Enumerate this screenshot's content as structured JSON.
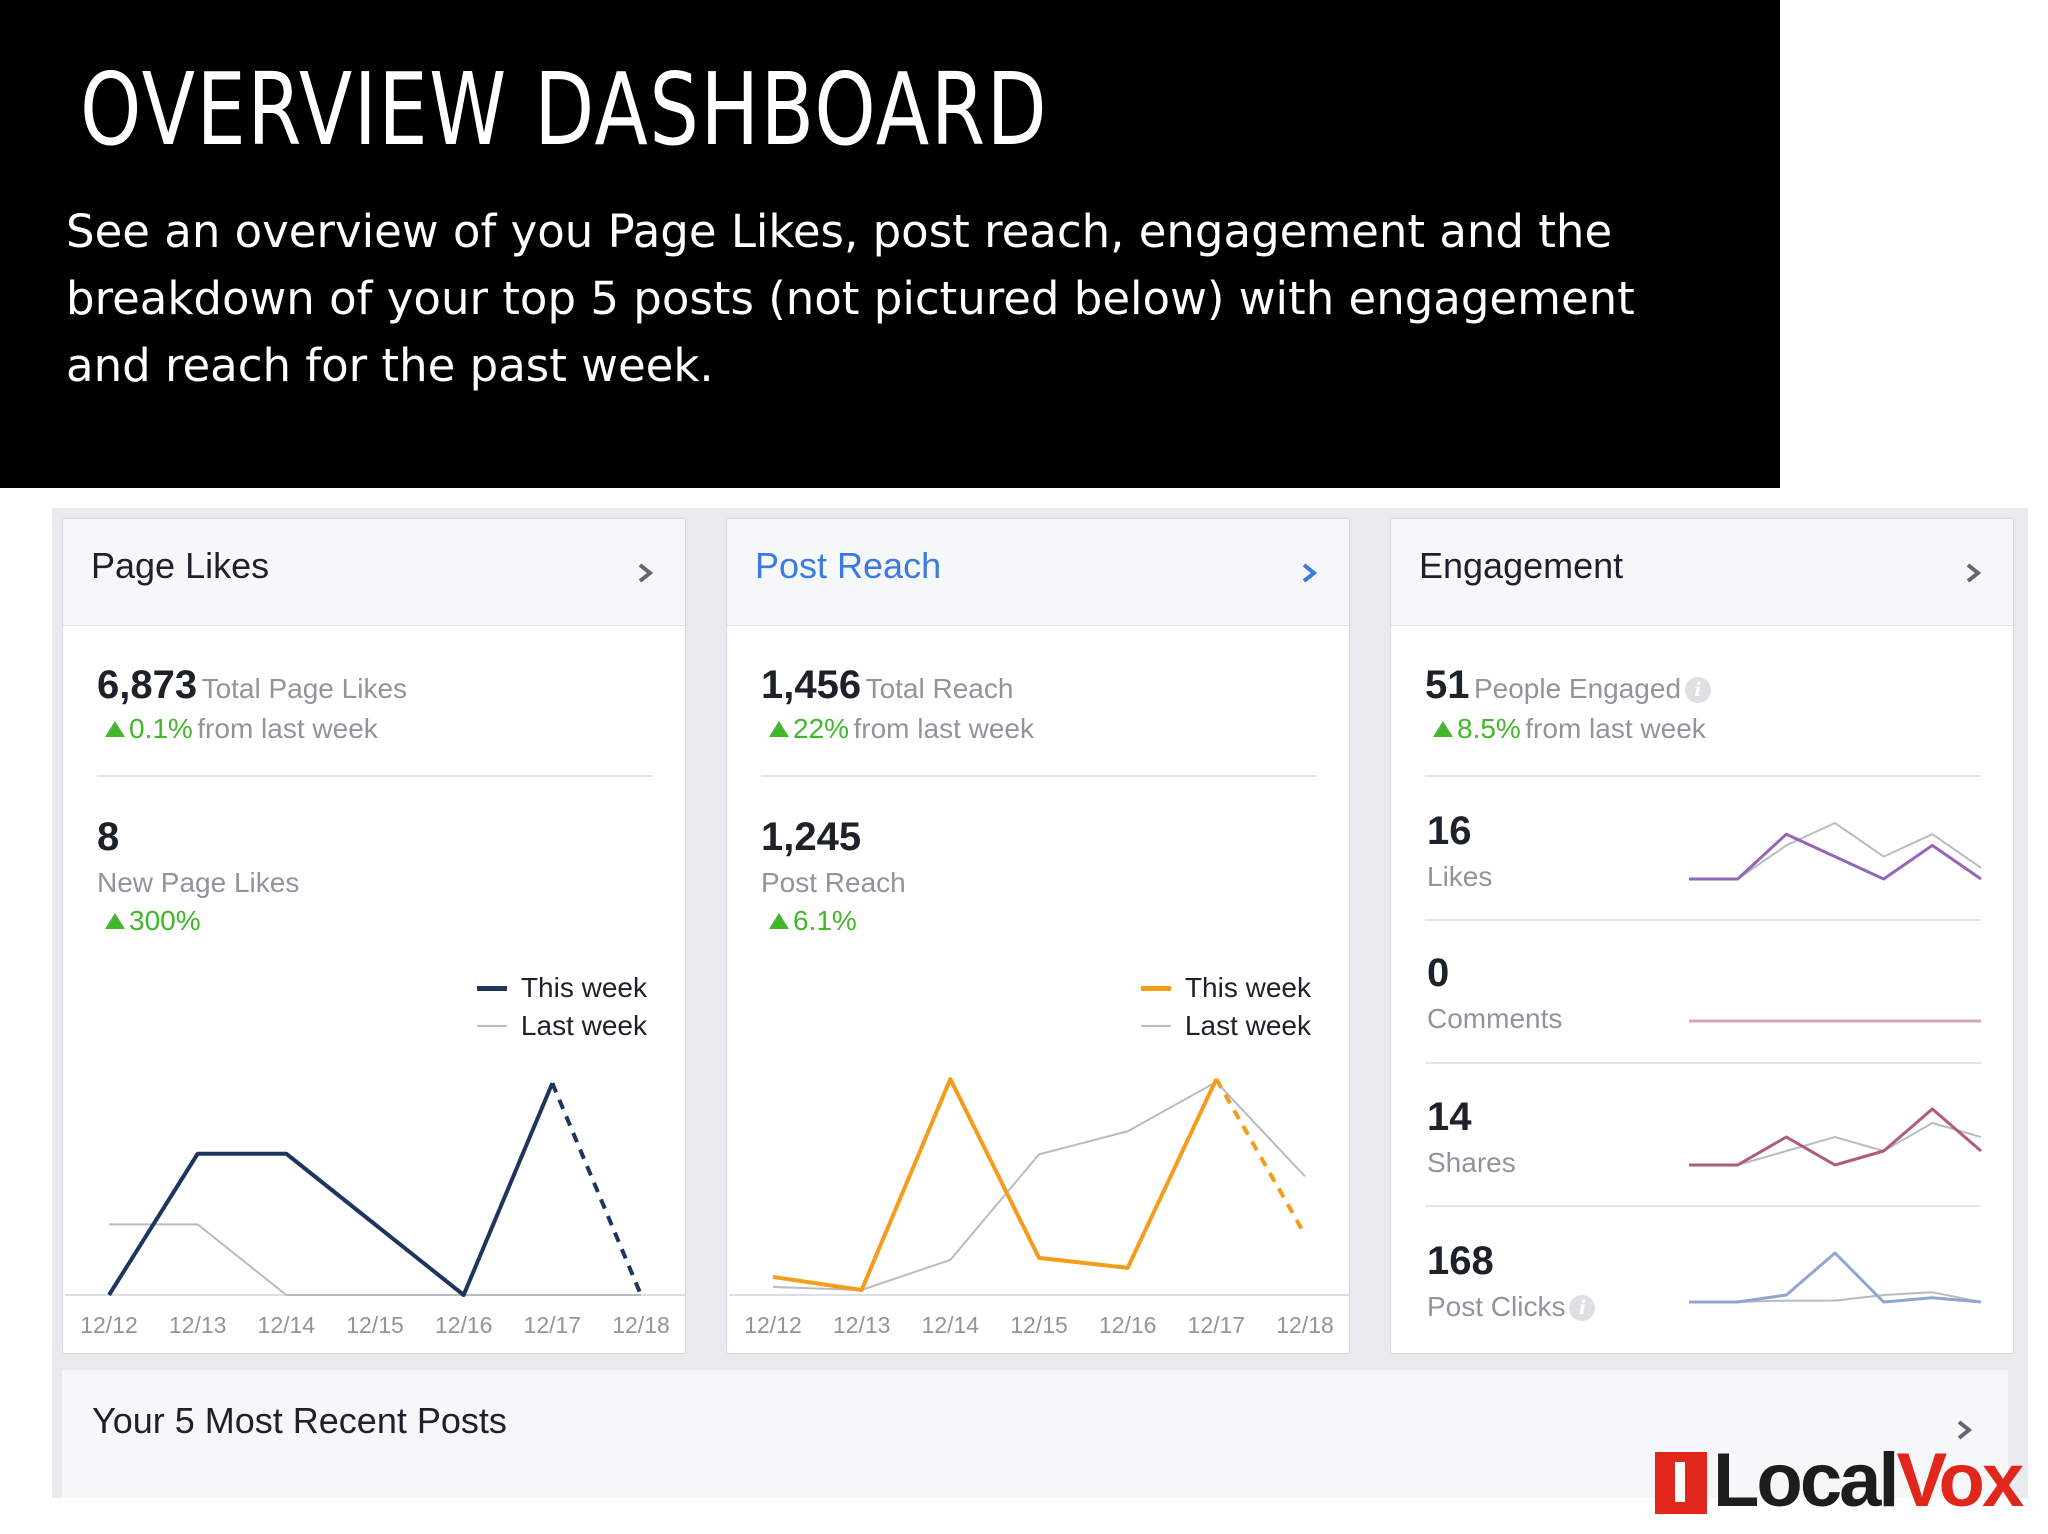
{
  "header": {
    "title": "OVERVIEW DASHBOARD",
    "description": "See an overview of you Page Likes, post reach, engagement and the breakdown of your top 5 posts (not pictured below) with engagement and reach for the past week."
  },
  "colors": {
    "this_week_likes": "#1f3560",
    "this_week_reach": "#f59c1a",
    "last_week": "#b8bcc2",
    "positive": "#42b72a",
    "link_blue": "#3b7ae0",
    "likes_purple": "#9466b8",
    "comments_pink": "#d9a5b8",
    "shares_plum": "#b05a7e",
    "clicks_blue": "#8fa6cf"
  },
  "cards": {
    "page_likes": {
      "title": "Page Likes",
      "total_value": "6,873",
      "total_label": "Total Page Likes",
      "total_change": "0.1%",
      "total_change_suffix": "from last week",
      "new_value": "8",
      "new_label": "New Page Likes",
      "new_change": "300%",
      "legend_this": "This week",
      "legend_last": "Last week"
    },
    "post_reach": {
      "title": "Post Reach",
      "total_value": "1,456",
      "total_label": "Total Reach",
      "total_change": "22%",
      "total_change_suffix": "from last week",
      "new_value": "1,245",
      "new_label": "Post Reach",
      "new_change": "6.1%",
      "legend_this": "This week",
      "legend_last": "Last week"
    },
    "engagement": {
      "title": "Engagement",
      "total_value": "51",
      "total_label": "People Engaged",
      "total_change": "8.5%",
      "total_change_suffix": "from last week",
      "info_icon": "i",
      "rows": [
        {
          "value": "16",
          "label": "Likes"
        },
        {
          "value": "0",
          "label": "Comments"
        },
        {
          "value": "14",
          "label": "Shares"
        },
        {
          "value": "168",
          "label": "Post Clicks"
        }
      ]
    }
  },
  "chart_data": [
    {
      "type": "line",
      "categories": [
        "12/12",
        "12/13",
        "12/14",
        "12/15",
        "12/16",
        "12/17",
        "12/18"
      ],
      "series": [
        {
          "name": "This week",
          "values": [
            0,
            2,
            2,
            1,
            0,
            3,
            0
          ]
        },
        {
          "name": "Last week",
          "values": [
            1,
            1,
            0,
            0,
            0,
            0,
            0
          ]
        }
      ],
      "ylim": [
        0,
        3.2
      ]
    },
    {
      "type": "line",
      "categories": [
        "12/12",
        "12/13",
        "12/14",
        "12/15",
        "12/16",
        "12/17",
        "12/18"
      ],
      "series": [
        {
          "name": "This week",
          "values": [
            18,
            5,
            215,
            37,
            27,
            215,
            60
          ]
        },
        {
          "name": "Last week",
          "values": [
            8,
            5,
            35,
            140,
            163,
            212,
            118
          ]
        }
      ],
      "ylim": [
        0,
        225
      ]
    },
    {
      "type": "line",
      "categories": [
        "12/12",
        "12/13",
        "12/14",
        "12/15",
        "12/16",
        "12/17",
        "12/18"
      ],
      "series": [
        {
          "name": "This week",
          "values": [
            0,
            0,
            4,
            2,
            0,
            3,
            0
          ]
        },
        {
          "name": "Last week",
          "values": [
            0,
            0,
            3,
            5,
            2,
            4,
            1
          ]
        }
      ]
    },
    {
      "type": "line",
      "categories": [
        "12/12",
        "12/13",
        "12/14",
        "12/15",
        "12/16",
        "12/17",
        "12/18"
      ],
      "series": [
        {
          "name": "This week",
          "values": [
            0,
            0,
            0,
            0,
            0,
            0,
            0
          ]
        },
        {
          "name": "Last week",
          "values": [
            0,
            0,
            0,
            0,
            0,
            0,
            0
          ]
        }
      ]
    },
    {
      "type": "line",
      "categories": [
        "12/12",
        "12/13",
        "12/14",
        "12/15",
        "12/16",
        "12/17",
        "12/18"
      ],
      "series": [
        {
          "name": "This week",
          "values": [
            0,
            0,
            2,
            0,
            1,
            4,
            1
          ]
        },
        {
          "name": "Last week",
          "values": [
            0,
            0,
            1,
            2,
            1,
            3,
            2
          ]
        }
      ]
    },
    {
      "type": "line",
      "categories": [
        "12/12",
        "12/13",
        "12/14",
        "12/15",
        "12/16",
        "12/17",
        "12/18"
      ],
      "series": [
        {
          "name": "This week",
          "values": [
            5,
            5,
            10,
            40,
            5,
            8,
            5
          ]
        },
        {
          "name": "Last week",
          "values": [
            5,
            5,
            6,
            6,
            10,
            12,
            5
          ]
        }
      ]
    }
  ],
  "recent": {
    "title": "Your 5 Most Recent Posts"
  },
  "logo": {
    "part1": "Local",
    "part2": "Vox"
  }
}
